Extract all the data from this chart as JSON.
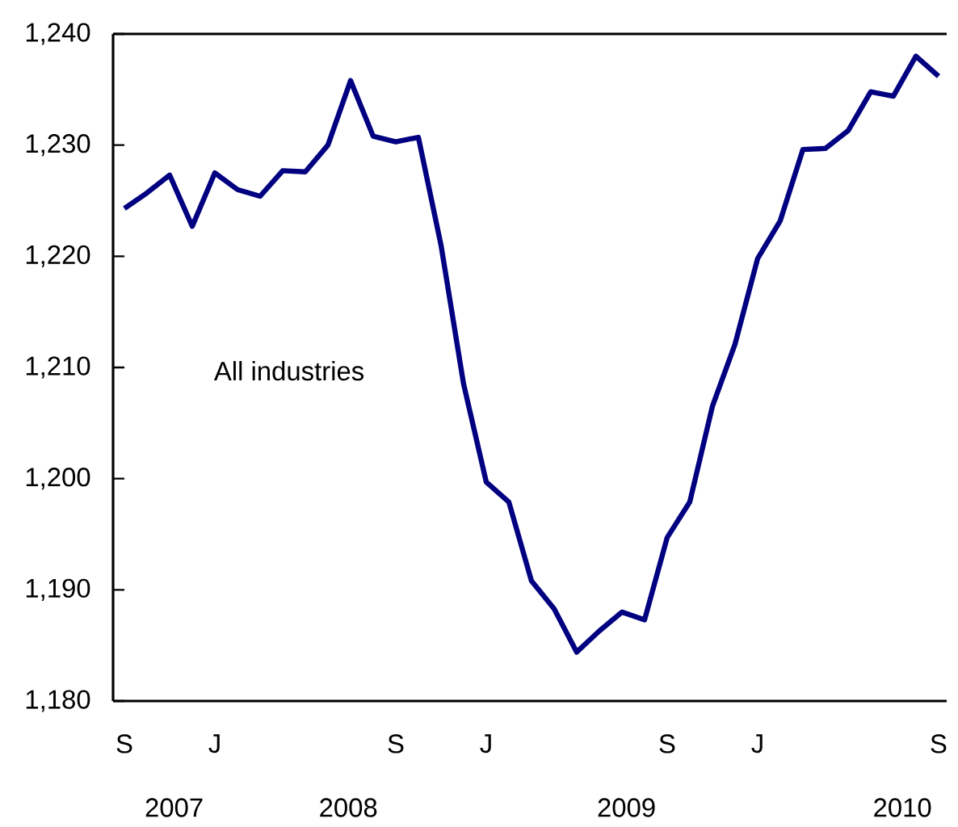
{
  "chart_data": {
    "type": "line",
    "categories": [
      "S",
      null,
      null,
      null,
      "J",
      null,
      null,
      null,
      null,
      null,
      null,
      null,
      "S",
      null,
      null,
      null,
      "J",
      null,
      null,
      null,
      null,
      null,
      null,
      null,
      "S",
      null,
      null,
      null,
      "J",
      null,
      null,
      null,
      null,
      null,
      null,
      null,
      "S"
    ],
    "series": [
      {
        "name": "All industries",
        "color": "#000080",
        "values": [
          1224.3,
          1225.7,
          1227.3,
          1222.7,
          1227.5,
          1226.0,
          1225.4,
          1227.7,
          1227.6,
          1230.0,
          1235.8,
          1230.8,
          1230.3,
          1230.7,
          1221.0,
          1208.5,
          1199.7,
          1197.9,
          1190.8,
          1188.3,
          1184.4,
          1186.3,
          1188.0,
          1187.3,
          1194.7,
          1197.9,
          1206.5,
          1212.1,
          1219.8,
          1223.2,
          1229.6,
          1229.7,
          1231.3,
          1234.8,
          1234.4,
          1238.0,
          1236.2
        ]
      }
    ],
    "ylim": [
      1180,
      1240
    ],
    "yticks": [
      {
        "value": 1180,
        "label": "1,180"
      },
      {
        "value": 1190,
        "label": "1,190"
      },
      {
        "value": 1200,
        "label": "1,200"
      },
      {
        "value": 1210,
        "label": "1,210"
      },
      {
        "value": 1220,
        "label": "1,220"
      },
      {
        "value": 1230,
        "label": "1,230"
      },
      {
        "value": 1240,
        "label": "1,240"
      }
    ],
    "annotations": [
      "2007",
      "2008",
      "2009",
      "2010"
    ]
  }
}
